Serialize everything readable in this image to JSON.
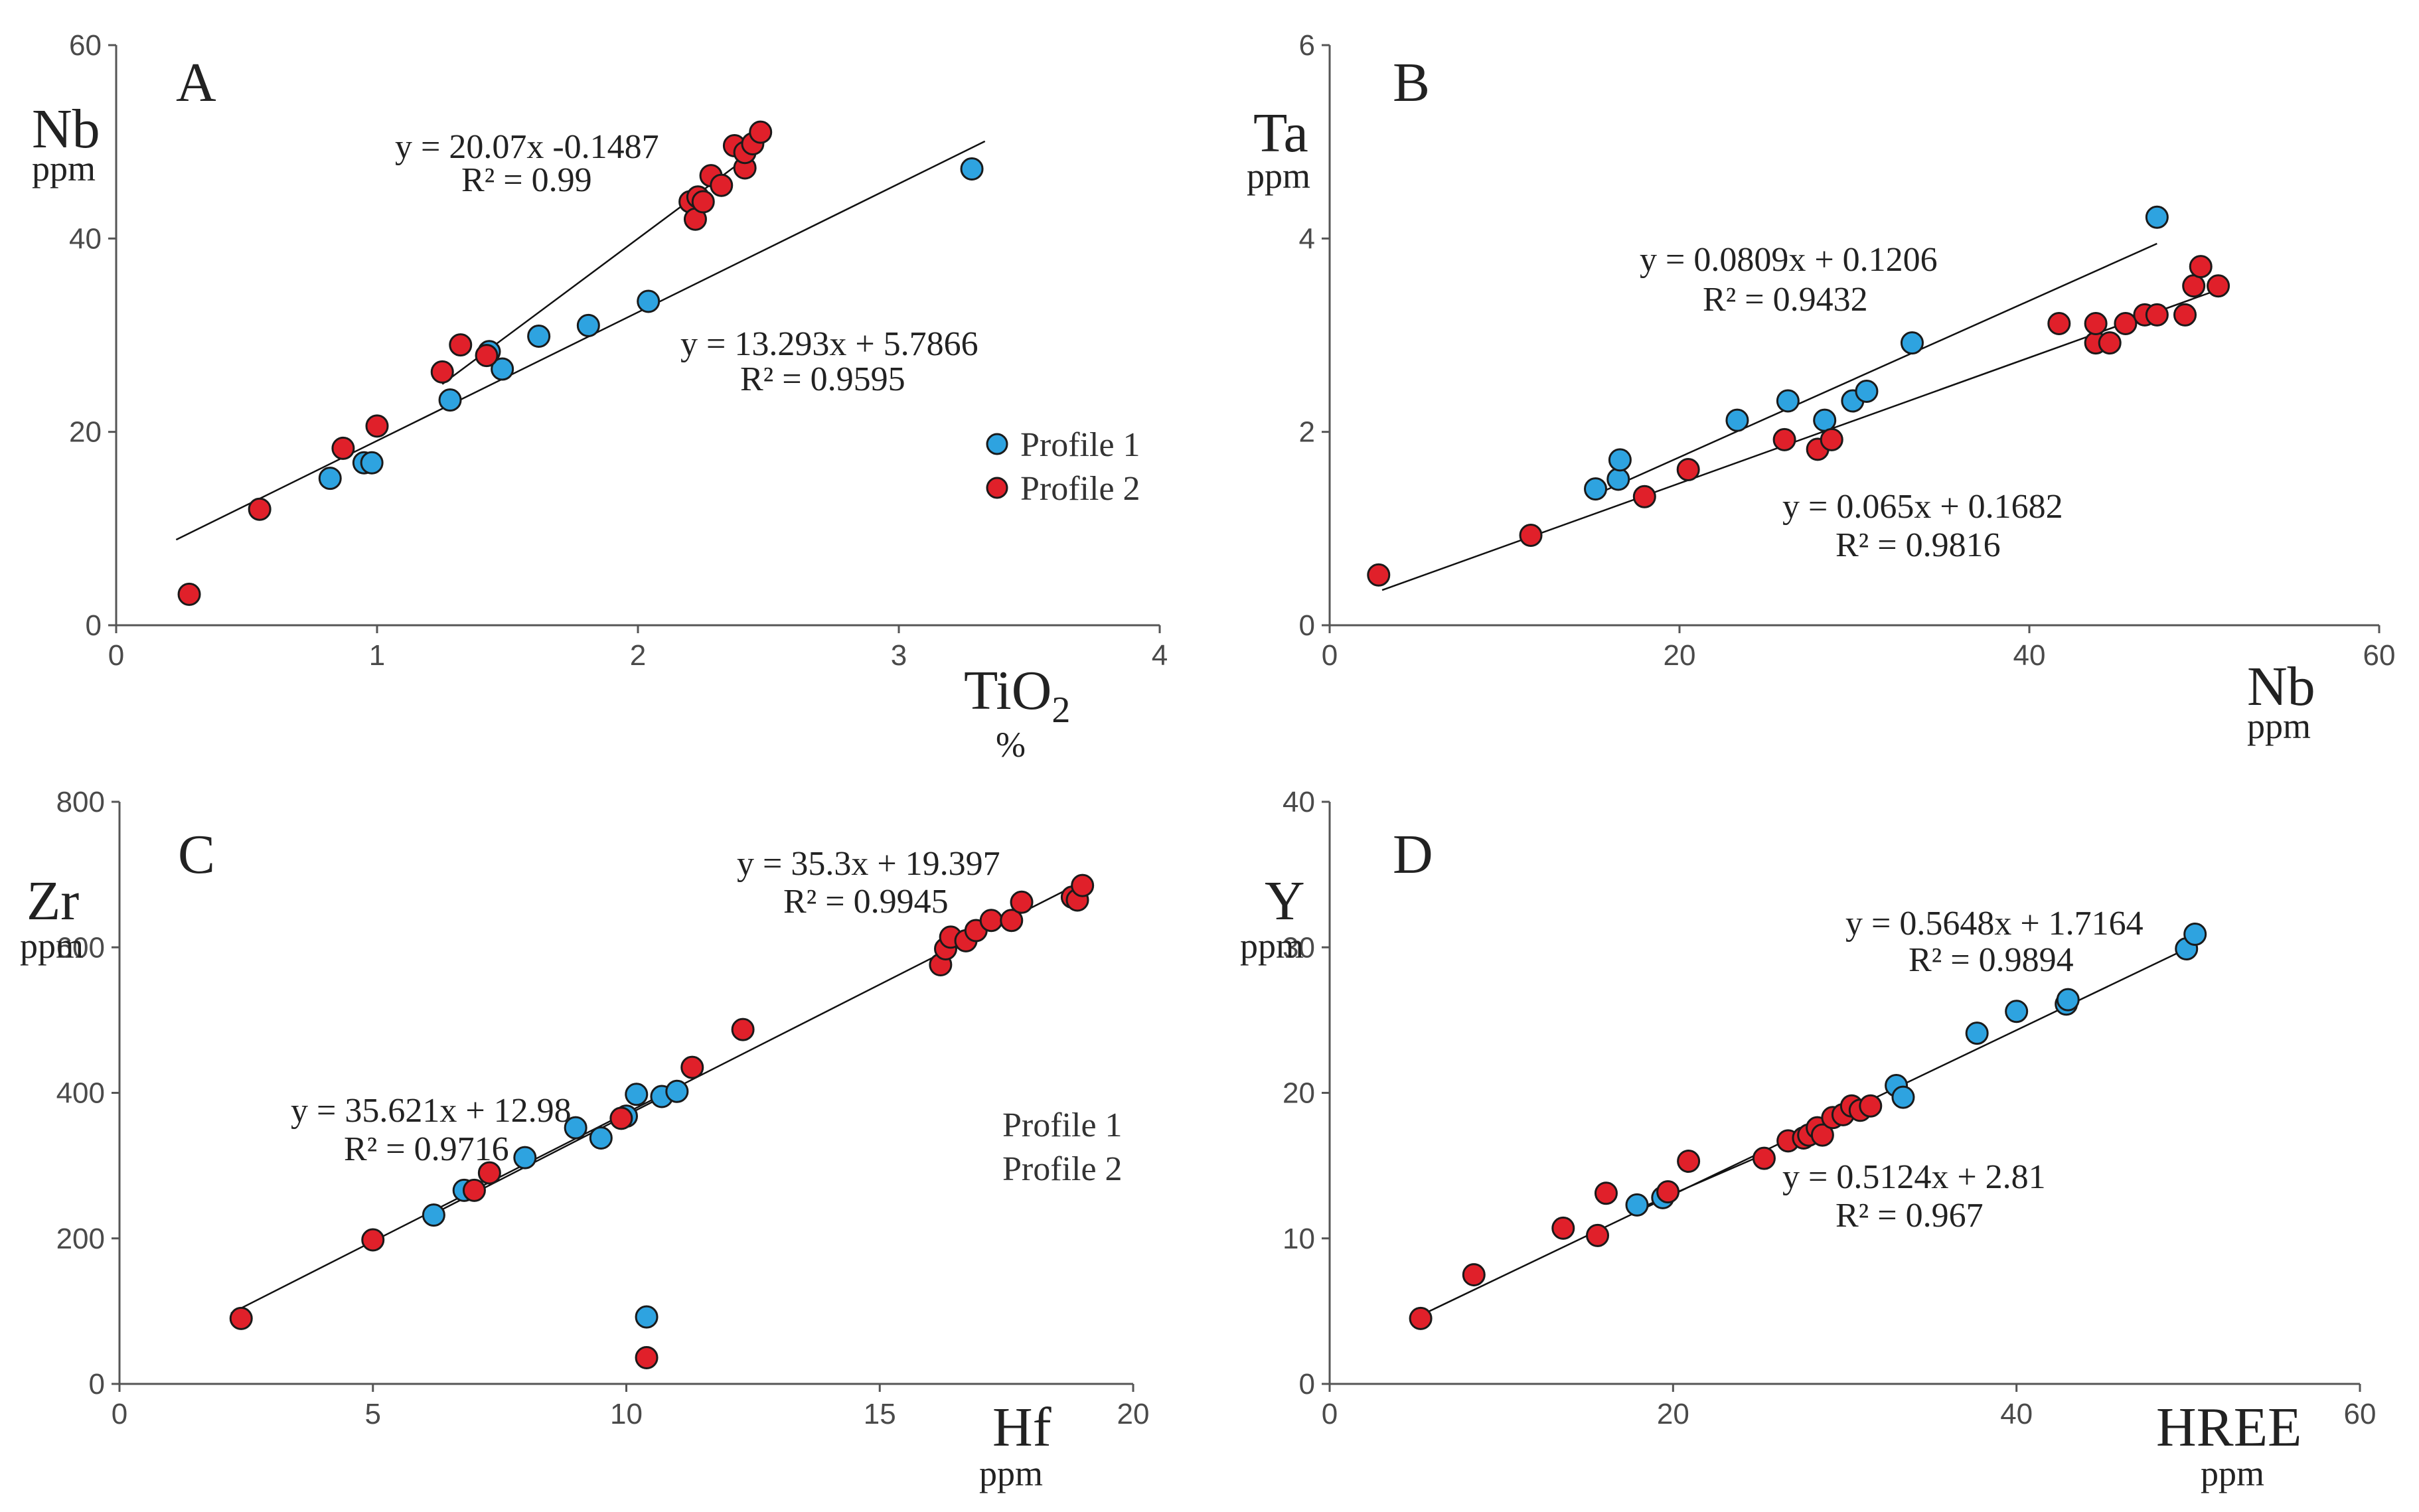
{
  "colors": {
    "profile1": "#2ea3e0",
    "profile2": "#e0202a"
  },
  "chart_data": [
    {
      "type": "scatter",
      "panel": "A",
      "xvar": "TiO",
      "xsub": "2",
      "xunit": "%",
      "yvar": "Nb",
      "yunit": "ppm",
      "xlim": [
        0,
        4
      ],
      "ylim": [
        0,
        60
      ],
      "xticks": [
        0,
        1,
        2,
        3,
        4
      ],
      "yticks": [
        0,
        20,
        40,
        60
      ],
      "legend": [
        {
          "label": "Profile 1",
          "color": "#2ea3e0"
        },
        {
          "label": "Profile 2",
          "color": "#e0202a"
        }
      ],
      "series": [
        {
          "name": "Profile 1",
          "color": "#2ea3e0",
          "x": [
            0.82,
            0.95,
            0.98,
            1.28,
            1.43,
            1.48,
            1.62,
            1.81,
            2.04,
            3.28
          ],
          "y": [
            15.2,
            16.8,
            16.8,
            23.3,
            28.3,
            26.5,
            29.9,
            31.0,
            33.5,
            47.2
          ]
        },
        {
          "name": "Profile 2",
          "color": "#e0202a",
          "x": [
            0.28,
            0.55,
            0.87,
            1.0,
            1.25,
            1.32,
            1.42,
            2.2,
            2.22,
            2.23,
            2.25,
            2.28,
            2.32,
            2.37,
            2.41,
            2.41,
            2.44,
            2.47
          ],
          "y": [
            3.2,
            12.0,
            18.3,
            20.6,
            26.2,
            29.0,
            27.9,
            43.8,
            42.0,
            44.3,
            43.8,
            46.5,
            45.5,
            49.6,
            47.3,
            48.9,
            49.8,
            51.0
          ]
        }
      ],
      "fits": [
        {
          "slope": 20.07,
          "intercept": -0.1487,
          "x_range": [
            1.25,
            2.47
          ],
          "equation": "y = 20.07x -0.1487",
          "r2": "R² = 0.99"
        },
        {
          "slope": 13.293,
          "intercept": 5.7866,
          "x_range": [
            0.23,
            3.33
          ],
          "equation": "y = 13.293x + 5.7866",
          "r2": "R² = 0.9595"
        }
      ]
    },
    {
      "type": "scatter",
      "panel": "B",
      "xvar": "Nb",
      "xsub": "",
      "xunit": "ppm",
      "yvar": "Ta",
      "yunit": "ppm",
      "xlim": [
        0,
        60
      ],
      "ylim": [
        0,
        6
      ],
      "xticks": [
        0,
        20,
        40,
        60
      ],
      "yticks": [
        0,
        2,
        4,
        6
      ],
      "legend": [],
      "series": [
        {
          "name": "Profile 1",
          "color": "#2ea3e0",
          "x": [
            15.2,
            16.5,
            16.6,
            23.3,
            26.2,
            28.3,
            29.9,
            30.7,
            33.3,
            47.3
          ],
          "y": [
            1.41,
            1.51,
            1.71,
            2.12,
            2.32,
            2.12,
            2.32,
            2.42,
            2.92,
            4.22
          ]
        },
        {
          "name": "Profile 2",
          "color": "#e0202a",
          "x": [
            2.8,
            11.5,
            18.0,
            20.5,
            26.0,
            27.9,
            28.7,
            41.7,
            43.8,
            43.8,
            44.6,
            45.5,
            46.6,
            47.3,
            48.9,
            49.4,
            49.8,
            50.8
          ],
          "y": [
            0.52,
            0.93,
            1.33,
            1.61,
            1.92,
            1.82,
            1.92,
            3.12,
            2.92,
            3.12,
            2.92,
            3.12,
            3.21,
            3.21,
            3.21,
            3.51,
            3.71,
            3.51
          ]
        }
      ],
      "fits": [
        {
          "slope": 0.0809,
          "intercept": 0.1206,
          "x_range": [
            15.0,
            47.3
          ],
          "equation": "y = 0.0809x + 0.1206",
          "r2": "R² = 0.9432"
        },
        {
          "slope": 0.065,
          "intercept": 0.1682,
          "x_range": [
            3.0,
            50.8
          ],
          "equation": "y = 0.065x + 0.1682",
          "r2": "R² = 0.9816"
        }
      ]
    },
    {
      "type": "scatter",
      "panel": "C",
      "xvar": "Hf",
      "xsub": "",
      "xunit": "ppm",
      "yvar": "Zr",
      "yunit": "ppm",
      "xlim": [
        0,
        20
      ],
      "ylim": [
        0,
        800
      ],
      "xticks": [
        0,
        5,
        10,
        15,
        20
      ],
      "yticks": [
        0,
        200,
        400,
        600,
        800
      ],
      "legend": [
        {
          "label": "Profile 1",
          "color": null
        },
        {
          "label": "Profile 2",
          "color": null
        }
      ],
      "series": [
        {
          "name": "Profile 1",
          "color": "#2ea3e0",
          "x": [
            6.2,
            6.8,
            8.0,
            9.0,
            9.5,
            10.0,
            10.2,
            10.7,
            11.0,
            10.4
          ],
          "y": [
            232,
            266,
            311,
            352,
            338,
            368,
            398,
            395,
            402,
            92
          ]
        },
        {
          "name": "Profile 2",
          "color": "#e0202a",
          "x": [
            2.4,
            5.0,
            7.0,
            7.3,
            9.9,
            11.3,
            12.3,
            16.2,
            16.3,
            16.4,
            16.7,
            16.9,
            17.2,
            17.6,
            17.8,
            18.8,
            18.9,
            19.0,
            10.4
          ],
          "y": [
            90,
            198,
            266,
            290,
            365,
            435,
            487,
            576,
            598,
            614,
            609,
            623,
            637,
            637,
            662,
            669,
            665,
            685,
            36
          ]
        }
      ],
      "fits": [
        {
          "slope": 35.3,
          "intercept": 19.397,
          "x_range": [
            2.2,
            19.0
          ],
          "equation": "y = 35.3x + 19.397",
          "r2": "R² = 0.9945"
        },
        {
          "slope": 35.621,
          "intercept": 12.98,
          "x_range": [
            6.0,
            11.0
          ],
          "equation": "y = 35.621x + 12.98",
          "r2": "R² = 0.9716"
        }
      ]
    },
    {
      "type": "scatter",
      "panel": "D",
      "xvar": "HREE",
      "xsub": "",
      "xunit": "ppm",
      "yvar": "Y",
      "yunit": "ppm",
      "xlim": [
        0,
        60
      ],
      "ylim": [
        0,
        40
      ],
      "xticks": [
        0,
        20,
        40,
        60
      ],
      "yticks": [
        0,
        10,
        20,
        30,
        40
      ],
      "legend": [],
      "series": [
        {
          "name": "Profile 1",
          "color": "#2ea3e0",
          "x": [
            17.9,
            19.4,
            33.0,
            33.4,
            37.7,
            40.0,
            42.9,
            43.0,
            49.9,
            50.4
          ],
          "y": [
            12.3,
            12.8,
            20.5,
            19.7,
            24.1,
            25.6,
            26.1,
            26.4,
            29.9,
            30.9
          ]
        },
        {
          "name": "Profile 2",
          "color": "#e0202a",
          "x": [
            5.3,
            8.4,
            13.6,
            15.6,
            16.1,
            19.7,
            20.9,
            25.3,
            26.7,
            27.6,
            27.9,
            28.4,
            28.7,
            29.3,
            29.9,
            30.4,
            30.9,
            31.5
          ],
          "y": [
            4.5,
            7.5,
            10.7,
            10.2,
            13.1,
            13.2,
            15.3,
            15.5,
            16.7,
            16.9,
            17.1,
            17.6,
            17.1,
            18.3,
            18.5,
            19.1,
            18.8,
            19.1
          ]
        }
      ],
      "fits": [
        {
          "slope": 0.5648,
          "intercept": 1.7164,
          "x_range": [
            5.8,
            50.4
          ],
          "equation": "y = 0.5648x + 1.7164",
          "r2": "R² = 0.9894"
        },
        {
          "slope": 0.5124,
          "intercept": 2.81,
          "x_range": [
            17.9,
            25.4
          ],
          "equation": "y = 0.5124x + 2.81",
          "r2": "R² = 0.967"
        }
      ]
    }
  ]
}
